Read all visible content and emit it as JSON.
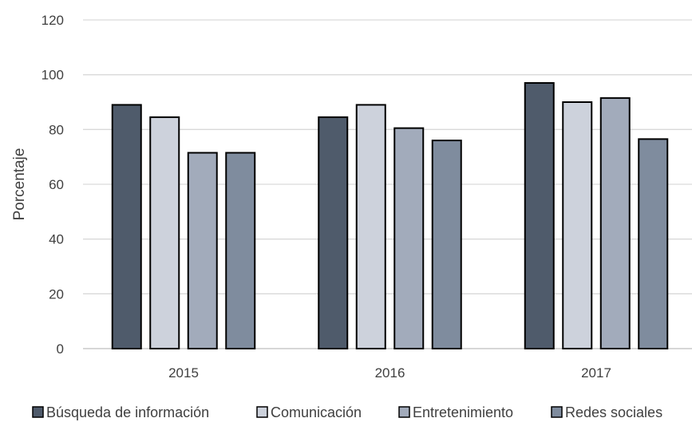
{
  "chart_data": {
    "type": "bar",
    "title": "",
    "xlabel": "",
    "ylabel": "Porcentaje",
    "ylim": [
      0,
      120
    ],
    "yticks": [
      0,
      20,
      40,
      60,
      80,
      100,
      120
    ],
    "grid": "horizontal",
    "legend_position": "bottom",
    "categories": [
      "2015",
      "2016",
      "2017"
    ],
    "series": [
      {
        "name": "Búsqueda de información",
        "color": "#4f5b6b",
        "values": [
          89,
          84.5,
          97
        ]
      },
      {
        "name": "Comunicación",
        "color": "#cdd2dc",
        "values": [
          84.5,
          89,
          90
        ]
      },
      {
        "name": "Entretenimiento",
        "color": "#a2abbb",
        "values": [
          71.5,
          80.5,
          91.5
        ]
      },
      {
        "name": "Redes sociales",
        "color": "#7f8c9e",
        "values": [
          71.5,
          76,
          76.5
        ]
      }
    ]
  }
}
